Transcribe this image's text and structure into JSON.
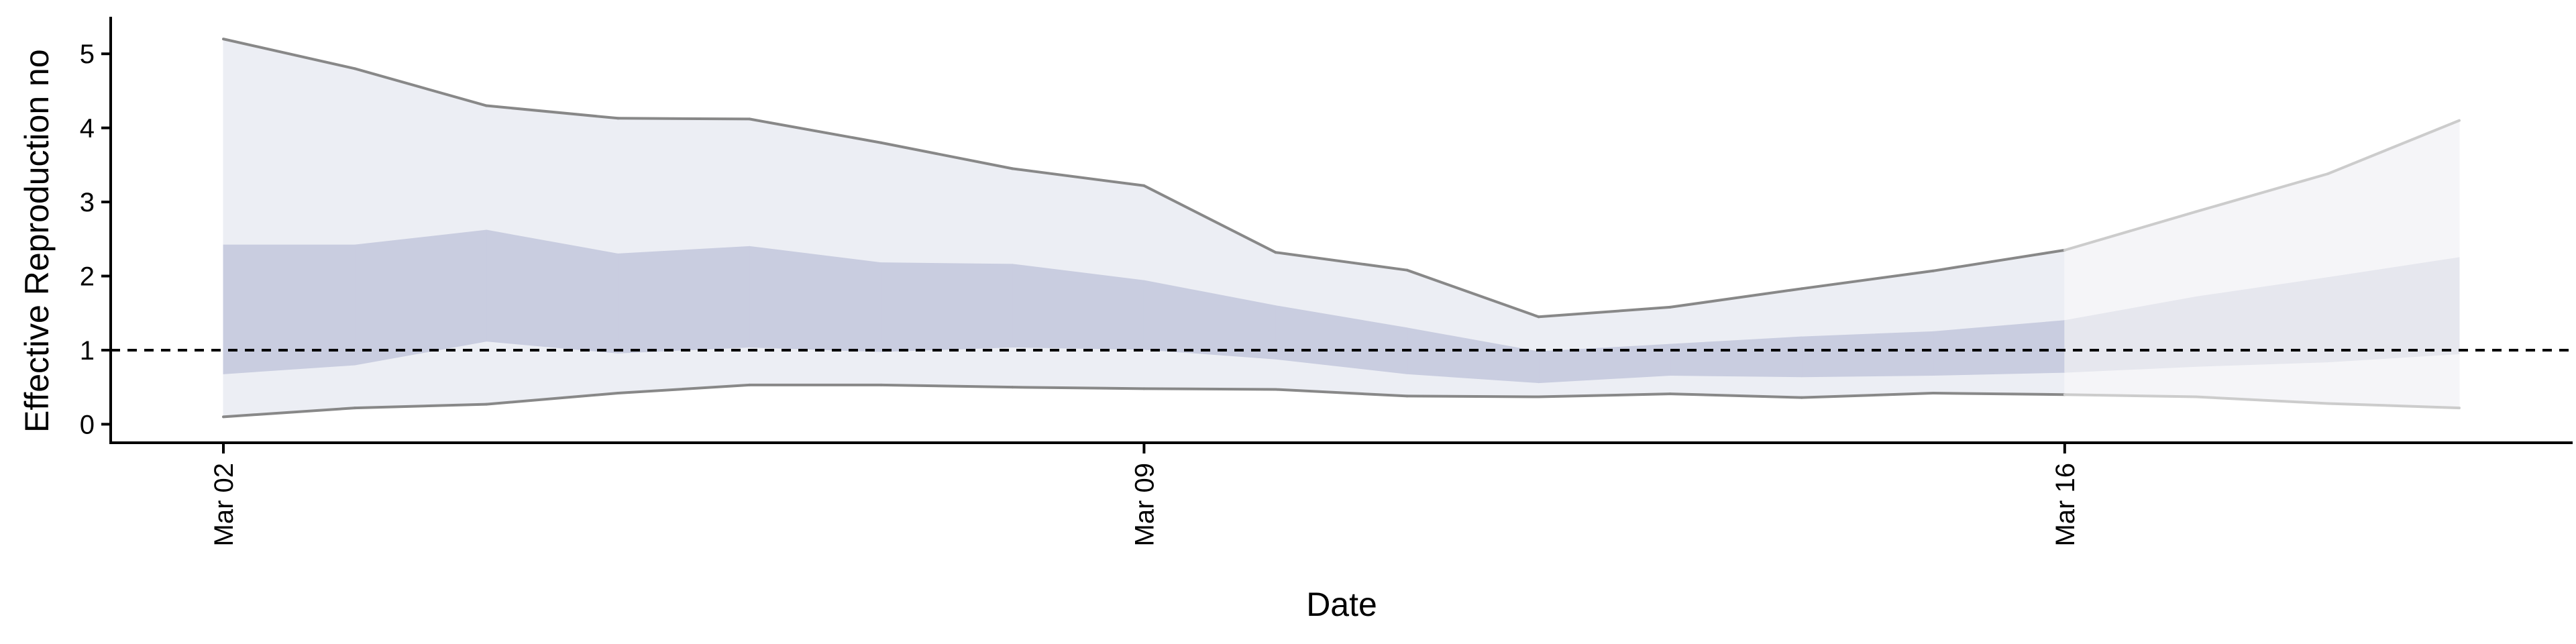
{
  "chart_data": {
    "type": "area",
    "xlabel": "Date",
    "ylabel": "Effective Reproduction no",
    "ylim": [
      -0.25,
      5.5
    ],
    "yticks": [
      0,
      1,
      2,
      3,
      4,
      5
    ],
    "x_start": "2020-03-02",
    "x_end": "2020-03-19",
    "xticks": [
      {
        "date": "2020-03-02",
        "label": "Mar 02"
      },
      {
        "date": "2020-03-09",
        "label": "Mar 09"
      },
      {
        "date": "2020-03-16",
        "label": "Mar 16"
      }
    ],
    "reference_line": {
      "y": 1,
      "style": "dashed"
    },
    "series": [
      {
        "dates": [
          "2020-03-02",
          "2020-03-03",
          "2020-03-04",
          "2020-03-05",
          "2020-03-06",
          "2020-03-07",
          "2020-03-08",
          "2020-03-09",
          "2020-03-10",
          "2020-03-11",
          "2020-03-12",
          "2020-03-13",
          "2020-03-14",
          "2020-03-15",
          "2020-03-16",
          "2020-03-17",
          "2020-03-18",
          "2020-03-19"
        ],
        "upper_90": [
          5.2,
          4.8,
          4.3,
          4.13,
          4.12,
          3.8,
          3.45,
          3.22,
          2.32,
          2.08,
          1.45,
          1.58,
          1.83,
          2.07,
          2.35,
          2.87,
          3.38,
          4.1
        ],
        "lower_90": [
          0.1,
          0.22,
          0.27,
          0.42,
          0.53,
          0.53,
          0.5,
          0.48,
          0.47,
          0.38,
          0.37,
          0.41,
          0.36,
          0.42,
          0.4,
          0.37,
          0.28,
          0.22
        ],
        "upper_50": [
          2.42,
          2.42,
          2.62,
          2.3,
          2.4,
          2.18,
          2.16,
          1.94,
          1.6,
          1.3,
          0.98,
          1.08,
          1.18,
          1.25,
          1.4,
          1.72,
          1.98,
          2.25
        ],
        "lower_50": [
          0.68,
          0.8,
          1.12,
          0.96,
          1.04,
          0.98,
          1.04,
          1.01,
          0.88,
          0.68,
          0.56,
          0.66,
          0.64,
          0.66,
          0.7,
          0.78,
          0.84,
          0.95
        ],
        "estimate_type": [
          "estimate",
          "estimate",
          "estimate",
          "estimate",
          "estimate",
          "estimate",
          "estimate",
          "estimate",
          "estimate",
          "estimate",
          "estimate",
          "estimate",
          "estimate",
          "estimate",
          "estimate",
          "forecast",
          "forecast",
          "forecast"
        ]
      }
    ],
    "colors": {
      "outer_band": "#eceef4",
      "inner_band": "#c9cde0",
      "bound_line": "#888888",
      "forecast_outer_band": "#f5f5f8",
      "forecast_inner_band": "#e6e7ee",
      "forecast_bound_line": "#cccccc",
      "axis": "#000000",
      "reference_line": "#000000"
    },
    "grid": false
  }
}
